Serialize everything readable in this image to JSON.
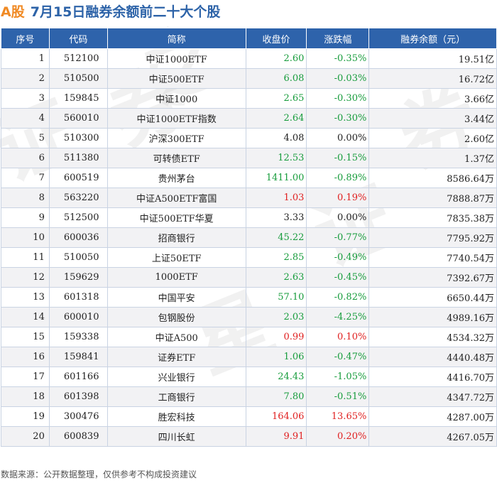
{
  "header": {
    "prefix": "A股",
    "title": "7月15日融券余额前二十大个股"
  },
  "watermark": [
    "证",
    "券",
    "之",
    "星",
    "证",
    "券"
  ],
  "table": {
    "columns": [
      "序号",
      "代码",
      "简称",
      "收盘价",
      "涨跌幅",
      "融券余额（元）"
    ],
    "rows": [
      {
        "idx": "1",
        "code": "512100",
        "name": "中证1000ETF",
        "price": "2.60",
        "change": "-0.35%",
        "balance": "19.51亿",
        "dir": "down"
      },
      {
        "idx": "2",
        "code": "510500",
        "name": "中证500ETF",
        "price": "6.08",
        "change": "-0.03%",
        "balance": "16.72亿",
        "dir": "down"
      },
      {
        "idx": "3",
        "code": "159845",
        "name": "中证1000",
        "price": "2.65",
        "change": "-0.30%",
        "balance": "3.66亿",
        "dir": "down"
      },
      {
        "idx": "4",
        "code": "560010",
        "name": "中证1000ETF指数",
        "price": "2.64",
        "change": "-0.30%",
        "balance": "3.44亿",
        "dir": "down"
      },
      {
        "idx": "5",
        "code": "510300",
        "name": "沪深300ETF",
        "price": "4.08",
        "change": "0.00%",
        "balance": "2.60亿",
        "dir": "flat"
      },
      {
        "idx": "6",
        "code": "511380",
        "name": "可转债ETF",
        "price": "12.53",
        "change": "-0.15%",
        "balance": "1.37亿",
        "dir": "down"
      },
      {
        "idx": "7",
        "code": "600519",
        "name": "贵州茅台",
        "price": "1411.00",
        "change": "-0.89%",
        "balance": "8586.64万",
        "dir": "down"
      },
      {
        "idx": "8",
        "code": "563220",
        "name": "中证A500ETF富国",
        "price": "1.03",
        "change": "0.19%",
        "balance": "7888.87万",
        "dir": "up"
      },
      {
        "idx": "9",
        "code": "512500",
        "name": "中证500ETF华夏",
        "price": "3.33",
        "change": "0.00%",
        "balance": "7835.38万",
        "dir": "flat"
      },
      {
        "idx": "10",
        "code": "600036",
        "name": "招商银行",
        "price": "45.22",
        "change": "-0.77%",
        "balance": "7795.92万",
        "dir": "down"
      },
      {
        "idx": "11",
        "code": "510050",
        "name": "上证50ETF",
        "price": "2.85",
        "change": "-0.49%",
        "balance": "7740.54万",
        "dir": "down"
      },
      {
        "idx": "12",
        "code": "159629",
        "name": "1000ETF",
        "price": "2.63",
        "change": "-0.45%",
        "balance": "7392.67万",
        "dir": "down"
      },
      {
        "idx": "13",
        "code": "601318",
        "name": "中国平安",
        "price": "57.10",
        "change": "-0.82%",
        "balance": "6650.44万",
        "dir": "down"
      },
      {
        "idx": "14",
        "code": "600010",
        "name": "包钢股份",
        "price": "2.03",
        "change": "-4.25%",
        "balance": "4989.16万",
        "dir": "down"
      },
      {
        "idx": "15",
        "code": "159338",
        "name": "中证A500",
        "price": "0.99",
        "change": "0.10%",
        "balance": "4534.32万",
        "dir": "up"
      },
      {
        "idx": "16",
        "code": "159841",
        "name": "证券ETF",
        "price": "1.06",
        "change": "-0.47%",
        "balance": "4440.48万",
        "dir": "down"
      },
      {
        "idx": "17",
        "code": "601166",
        "name": "兴业银行",
        "price": "24.43",
        "change": "-1.05%",
        "balance": "4416.70万",
        "dir": "down"
      },
      {
        "idx": "18",
        "code": "601398",
        "name": "工商银行",
        "price": "7.80",
        "change": "-0.51%",
        "balance": "4347.72万",
        "dir": "down"
      },
      {
        "idx": "19",
        "code": "300476",
        "name": "胜宏科技",
        "price": "164.06",
        "change": "13.65%",
        "balance": "4287.00万",
        "dir": "up"
      },
      {
        "idx": "20",
        "code": "600839",
        "name": "四川长虹",
        "price": "9.91",
        "change": "0.20%",
        "balance": "4267.05万",
        "dir": "up"
      }
    ]
  },
  "footer": {
    "source": "数据来源：公开数据整理，仅供参考不构成投资建议"
  },
  "colors": {
    "header_bg": "#2e63ab",
    "up": "#e02020",
    "down": "#179c3c",
    "title_prefix": "#f08a24",
    "title": "#2d63a8"
  }
}
